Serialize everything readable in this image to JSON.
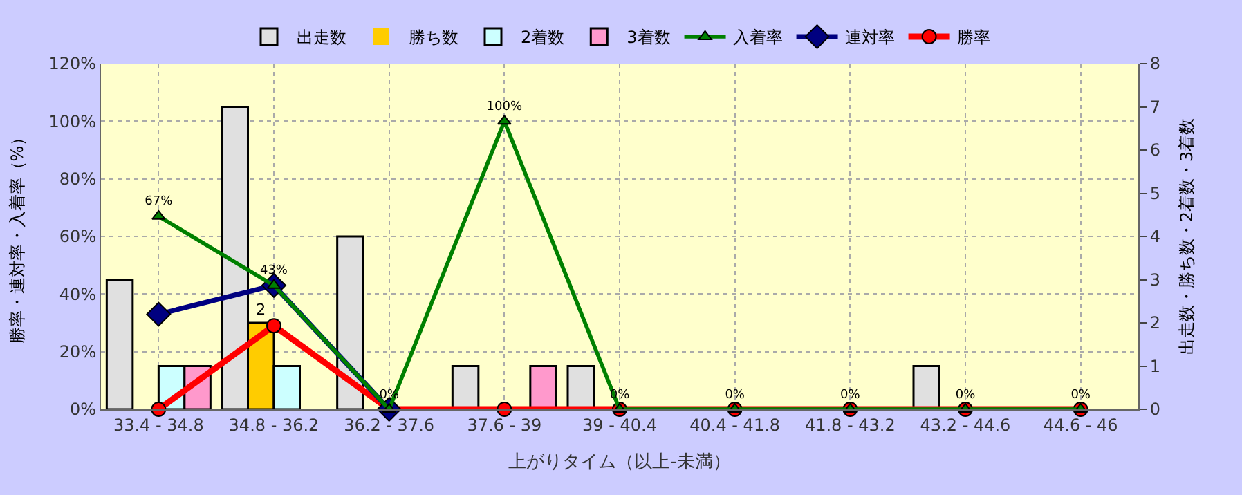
{
  "chart_data": {
    "type": "bar",
    "categories": [
      "33.4 - 34.8",
      "34.8 - 36.2",
      "36.2 - 37.6",
      "37.6 - 39",
      "39 - 40.4",
      "40.4 - 41.8",
      "41.8 - 43.2",
      "43.2 - 44.6",
      "44.6 - 46"
    ],
    "xlabel": "上がりタイム（以上-未満）",
    "ylabel": "勝率・連対率・入着率（%）",
    "y2label": "出走数・勝ち数・2着数・3着数",
    "ylim": [
      0,
      120
    ],
    "yticks": [
      {
        "value": 0,
        "label": "0%"
      },
      {
        "value": 20,
        "label": "20%"
      },
      {
        "value": 40,
        "label": "40%"
      },
      {
        "value": 60,
        "label": "60%"
      },
      {
        "value": 80,
        "label": "80%"
      },
      {
        "value": 100,
        "label": "100%"
      },
      {
        "value": 120,
        "label": "120%"
      }
    ],
    "y2lim": [
      0,
      8
    ],
    "y2ticks": [
      0,
      1,
      2,
      3,
      4,
      5,
      6,
      7,
      8
    ],
    "grid": true,
    "legend": "top",
    "series": [
      {
        "name": "出走数",
        "axis": "y2",
        "color": "#e0e0e0",
        "values": [
          3,
          7,
          4,
          1,
          1,
          0,
          0,
          1,
          0
        ]
      },
      {
        "name": "勝ち数",
        "axis": "y2",
        "color": "#ffcc00",
        "values": [
          0,
          2,
          0,
          0,
          0,
          0,
          0,
          0,
          0
        ],
        "value_labels": [
          null,
          "2",
          null,
          null,
          null,
          null,
          null,
          null,
          null
        ]
      },
      {
        "name": "2着数",
        "axis": "y2",
        "color": "#ccffff",
        "values": [
          1,
          1,
          0,
          0,
          0,
          0,
          0,
          0,
          0
        ]
      },
      {
        "name": "3着数",
        "axis": "y2",
        "color": "#ff99cc",
        "values": [
          1,
          0,
          0,
          1,
          0,
          0,
          0,
          0,
          0
        ]
      },
      {
        "name": "入着率",
        "type": "line",
        "color": "#008000",
        "marker": "triangle",
        "values": [
          67,
          43,
          0,
          100,
          0,
          0,
          0,
          0,
          0
        ],
        "value_labels": [
          "67%",
          "43%",
          "0%",
          "100%",
          "0%",
          "0%",
          "0%",
          "0%",
          "0%"
        ]
      },
      {
        "name": "連対率",
        "type": "line",
        "color": "#000080",
        "marker": "diamond",
        "values": [
          33,
          43,
          0,
          null,
          null,
          null,
          null,
          null,
          null
        ]
      },
      {
        "name": "勝率",
        "type": "line",
        "color": "#ff0000",
        "marker": "circle",
        "values": [
          0,
          29,
          0,
          0,
          0,
          0,
          0,
          0,
          0
        ]
      }
    ]
  }
}
